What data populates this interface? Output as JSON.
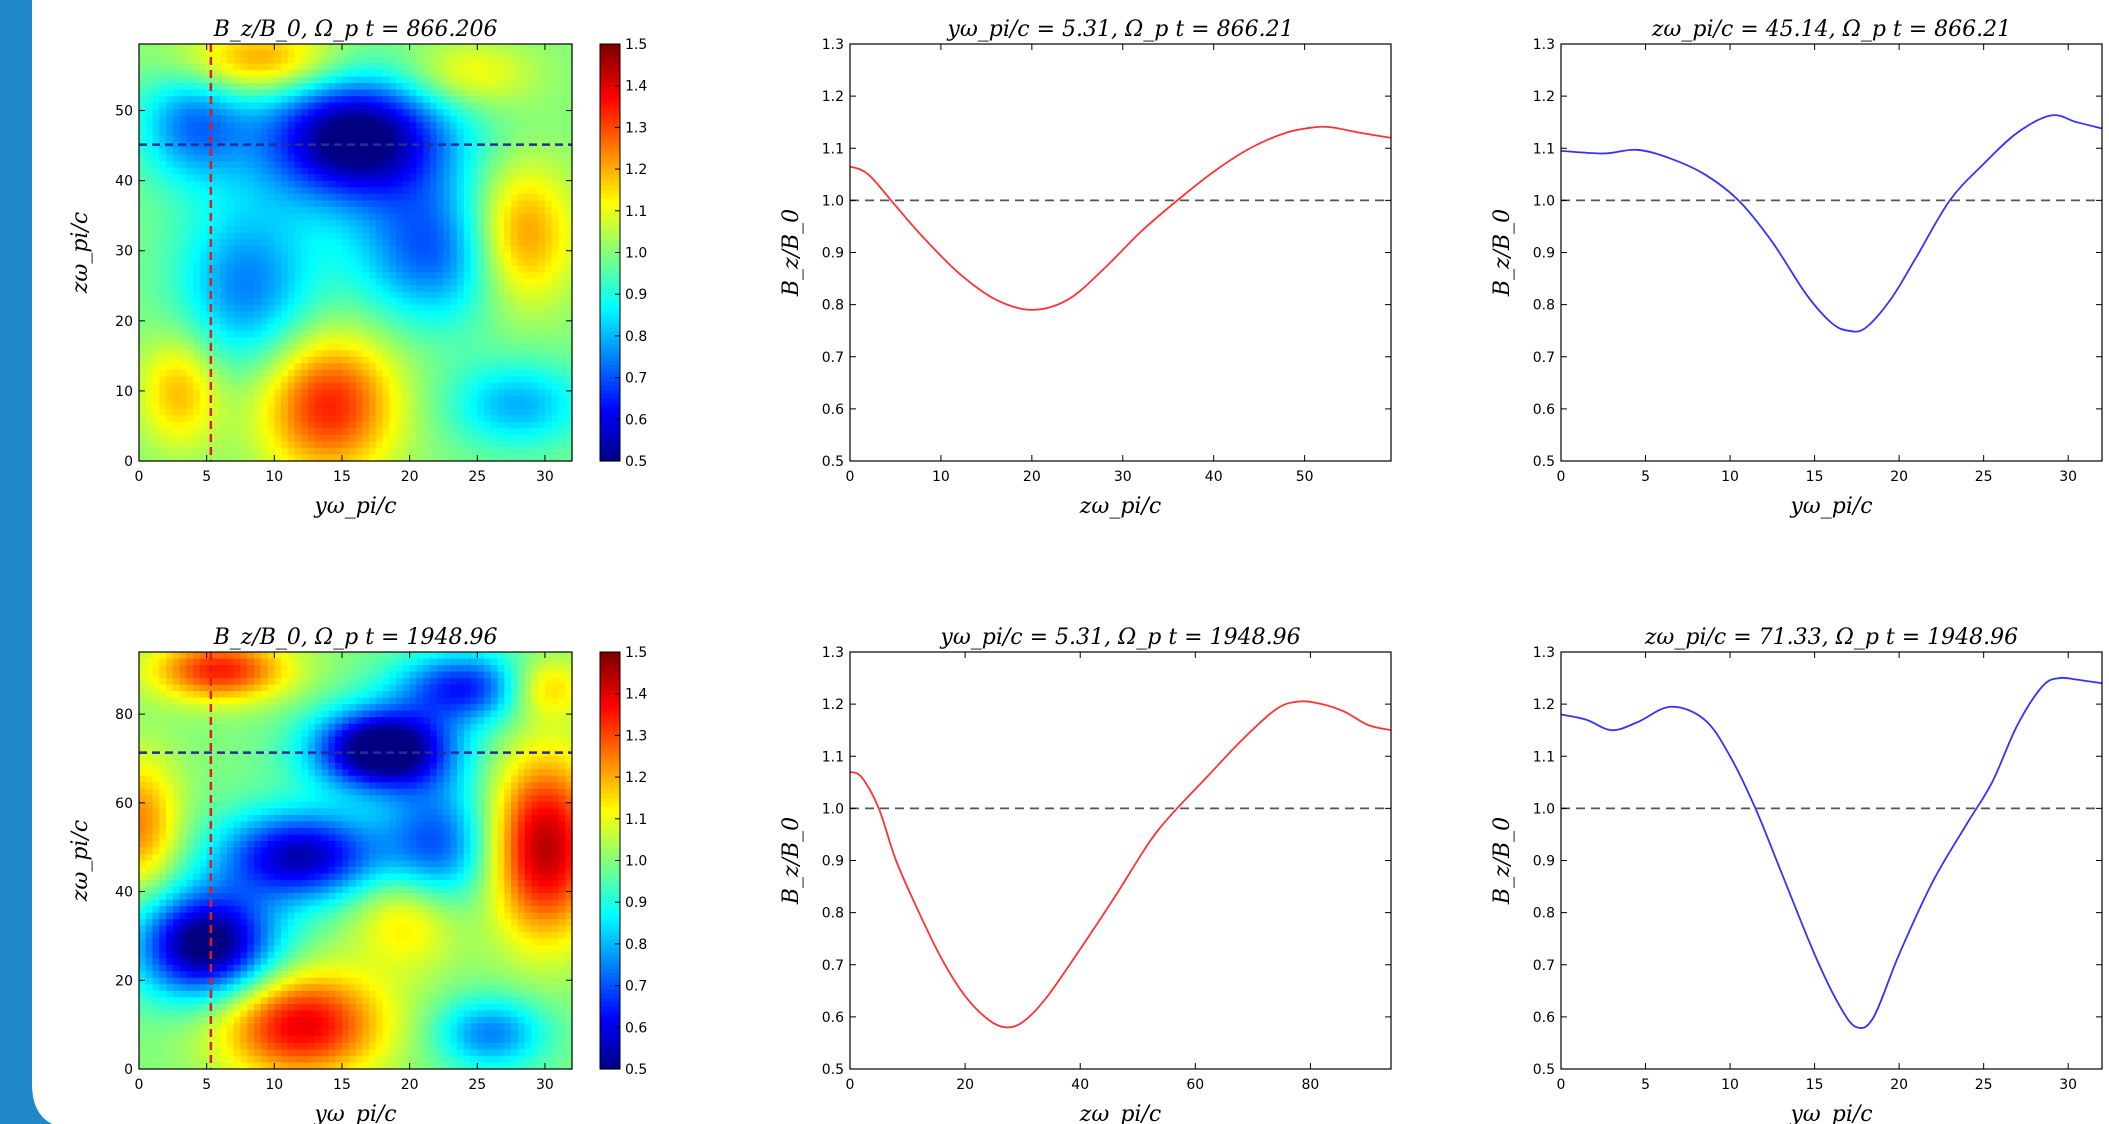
{
  "accent_color": "#1E88C8",
  "chart_data": [
    {
      "type": "heatmap",
      "title": "B_z/B_0, Ω_p t = 866.206",
      "xlabel": "yω_pi/c",
      "ylabel": "zω_pi/c",
      "xlim": [
        0,
        32
      ],
      "ylim": [
        0,
        59.5
      ],
      "x_ticks": [
        "0",
        "5",
        "10",
        "15",
        "20",
        "25",
        "30"
      ],
      "y_ticks": [
        "0",
        "10",
        "20",
        "30",
        "40",
        "50"
      ],
      "colorbar_range": [
        0.5,
        1.5
      ],
      "colorbar_ticks": [
        "0.5",
        "0.6",
        "0.7",
        "0.8",
        "0.9",
        "1.0",
        "1.1",
        "1.2",
        "1.3",
        "1.4",
        "1.5"
      ],
      "vertical_cut": 5.31,
      "horizontal_cut": 45.14,
      "cut_colors": {
        "vertical": "#e41a1c",
        "horizontal": "#2b2b9a"
      }
    },
    {
      "type": "line",
      "title": "yω_pi/c = 5.31, Ω_p t = 866.21",
      "xlabel": "zω_pi/c",
      "ylabel": "B_z/B_0",
      "xlim": [
        0,
        59.5
      ],
      "ylim": [
        0.5,
        1.3
      ],
      "x_ticks": [
        "0",
        "10",
        "20",
        "30",
        "40",
        "50"
      ],
      "y_ticks": [
        "0.5",
        "0.6",
        "0.7",
        "0.8",
        "0.9",
        "1.0",
        "1.1",
        "1.2",
        "1.3"
      ],
      "reference_line": 1.0,
      "series": [
        {
          "color": "#ff3333",
          "x": [
            0,
            2,
            5,
            8,
            12,
            16,
            20,
            24,
            28,
            32,
            36,
            40,
            44,
            48,
            51,
            53,
            56,
            59.5
          ],
          "y": [
            1.065,
            1.05,
            0.99,
            0.93,
            0.86,
            0.81,
            0.79,
            0.81,
            0.87,
            0.94,
            1.0,
            1.055,
            1.1,
            1.13,
            1.14,
            1.14,
            1.13,
            1.12
          ]
        }
      ]
    },
    {
      "type": "line",
      "title": "zω_pi/c = 45.14, Ω_p t = 866.21",
      "xlabel": "yω_pi/c",
      "ylabel": "B_z/B_0",
      "xlim": [
        0,
        32
      ],
      "ylim": [
        0.5,
        1.3
      ],
      "x_ticks": [
        "0",
        "5",
        "10",
        "15",
        "20",
        "25",
        "30"
      ],
      "y_ticks": [
        "0.5",
        "0.6",
        "0.7",
        "0.8",
        "0.9",
        "1.0",
        "1.1",
        "1.2",
        "1.3"
      ],
      "reference_line": 1.0,
      "series": [
        {
          "color": "#3333ff",
          "x": [
            0,
            2.5,
            4.5,
            6.5,
            8.5,
            10.5,
            12.5,
            14.5,
            16,
            17,
            18,
            19.5,
            21,
            23,
            25,
            27,
            29,
            30.5,
            32
          ],
          "y": [
            1.095,
            1.09,
            1.097,
            1.08,
            1.05,
            1.0,
            0.92,
            0.82,
            0.765,
            0.75,
            0.755,
            0.81,
            0.89,
            1.0,
            1.07,
            1.13,
            1.163,
            1.15,
            1.138
          ]
        }
      ]
    },
    {
      "type": "heatmap",
      "title": "B_z/B_0, Ω_p t = 1948.96",
      "xlabel": "yω_pi/c",
      "ylabel": "zω_pi/c",
      "xlim": [
        0,
        32
      ],
      "ylim": [
        0,
        94
      ],
      "x_ticks": [
        "0",
        "5",
        "10",
        "15",
        "20",
        "25",
        "30"
      ],
      "y_ticks": [
        "0",
        "20",
        "40",
        "60",
        "80"
      ],
      "colorbar_range": [
        0.5,
        1.5
      ],
      "colorbar_ticks": [
        "0.5",
        "0.6",
        "0.7",
        "0.8",
        "0.9",
        "1.0",
        "1.1",
        "1.2",
        "1.3",
        "1.4",
        "1.5"
      ],
      "vertical_cut": 5.31,
      "horizontal_cut": 71.33,
      "cut_colors": {
        "vertical": "#e41a1c",
        "horizontal": "#2b2b9a"
      }
    },
    {
      "type": "line",
      "title": "yω_pi/c = 5.31, Ω_p t = 1948.96",
      "xlabel": "zω_pi/c",
      "ylabel": "B_z/B_0",
      "xlim": [
        0,
        94
      ],
      "ylim": [
        0.5,
        1.3
      ],
      "x_ticks": [
        "0",
        "20",
        "40",
        "60",
        "80"
      ],
      "y_ticks": [
        "0.5",
        "0.6",
        "0.7",
        "0.8",
        "0.9",
        "1.0",
        "1.1",
        "1.2",
        "1.3"
      ],
      "reference_line": 1.0,
      "series": [
        {
          "color": "#ff3333",
          "x": [
            0,
            2,
            5,
            8,
            12,
            16,
            20,
            24,
            27,
            30,
            34,
            40,
            46,
            52,
            56,
            62,
            68,
            74,
            78,
            82,
            86,
            90,
            94
          ],
          "y": [
            1.07,
            1.06,
            1.0,
            0.9,
            0.8,
            0.71,
            0.64,
            0.595,
            0.58,
            0.59,
            0.635,
            0.73,
            0.83,
            0.935,
            0.99,
            1.06,
            1.13,
            1.19,
            1.205,
            1.2,
            1.185,
            1.16,
            1.15
          ]
        }
      ]
    },
    {
      "type": "line",
      "title": "zω_pi/c = 71.33, Ω_p t = 1948.96",
      "xlabel": "yω_pi/c",
      "ylabel": "B_z/B_0",
      "xlim": [
        0,
        32
      ],
      "ylim": [
        0.5,
        1.3
      ],
      "x_ticks": [
        "0",
        "5",
        "10",
        "15",
        "20",
        "25",
        "30"
      ],
      "y_ticks": [
        "0.5",
        "0.6",
        "0.7",
        "0.8",
        "0.9",
        "1.0",
        "1.1",
        "1.2",
        "1.3"
      ],
      "reference_line": 1.0,
      "series": [
        {
          "color": "#3333ff",
          "x": [
            0,
            1.5,
            3,
            4.5,
            6.5,
            8.5,
            10,
            11.5,
            13,
            15,
            16.5,
            17.5,
            18.5,
            20,
            22,
            24,
            25.5,
            27,
            28.5,
            29.5,
            30.5,
            32
          ],
          "y": [
            1.18,
            1.17,
            1.15,
            1.165,
            1.195,
            1.17,
            1.1,
            1.0,
            0.88,
            0.72,
            0.62,
            0.58,
            0.6,
            0.72,
            0.86,
            0.97,
            1.05,
            1.16,
            1.235,
            1.25,
            1.247,
            1.24
          ]
        }
      ]
    }
  ]
}
